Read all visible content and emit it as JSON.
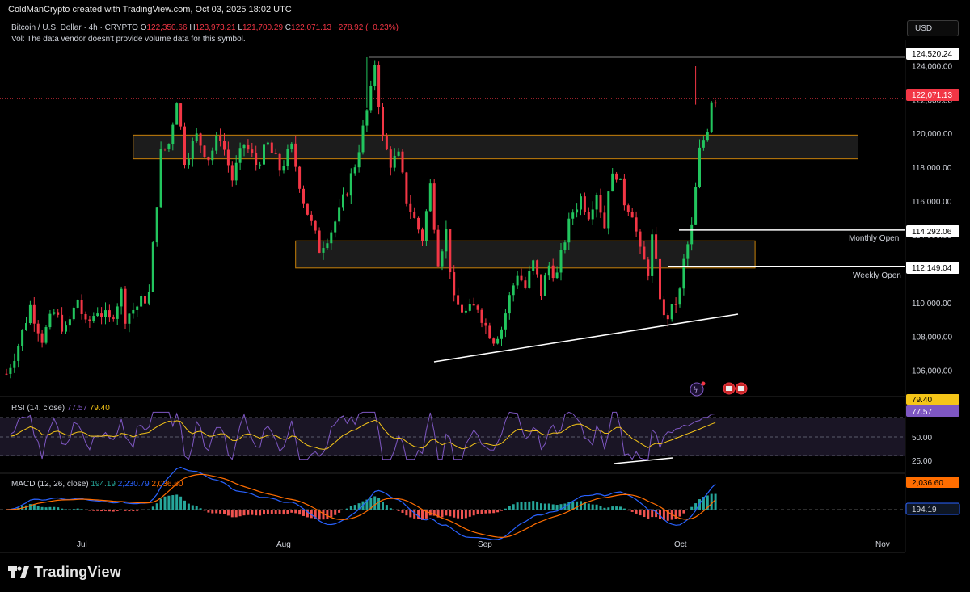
{
  "header": {
    "credit": "ColdManCrypto created with TradingView.com, Oct 03, 2025 18:02 UTC",
    "symbol": "Bitcoin / U.S. Dollar · 4h · CRYPTO",
    "o_label": "O",
    "o_value": "122,350.66",
    "h_label": "H",
    "h_value": "123,973.21",
    "l_label": "L",
    "l_value": "121,700.29",
    "c_label": "C",
    "c_value": "122,071.13",
    "change": "−278.92 (−0.23%)",
    "vol_note": "Vol: The data vendor doesn't provide volume data for this symbol.",
    "currency_button": "USD"
  },
  "brand": {
    "name": "TradingView"
  },
  "colors": {
    "up": "#089981",
    "up_bright": "#22c55e",
    "down": "#f23645",
    "zone_border": "#c9820a",
    "rsi": "#7e57c2",
    "rsi_ma": "#f5c518",
    "macd": "#2962ff",
    "signal": "#ff6d00"
  },
  "chart_data": [
    {
      "type": "candlestick",
      "title": "Bitcoin / U.S. Dollar · 4h · CRYPTO",
      "y_ticks": [
        "124,000.00",
        "122,000.00",
        "120,000.00",
        "118,000.00",
        "116,000.00",
        "114,000.00",
        "112,000.00",
        "110,000.00",
        "108,000.00",
        "106,000.00"
      ],
      "y_tick_values": [
        124000,
        122000,
        120000,
        118000,
        116000,
        114000,
        112000,
        110000,
        108000,
        106000
      ],
      "x_ticks": [
        "Jul",
        "Aug",
        "Sep",
        "Oct",
        "Nov"
      ],
      "ylim": [
        104500,
        125500
      ],
      "price_path": [
        [
          0,
          105800
        ],
        [
          3,
          107500
        ],
        [
          6,
          109800
        ],
        [
          9,
          107900
        ],
        [
          12,
          109400
        ],
        [
          15,
          108300
        ],
        [
          18,
          110200
        ],
        [
          20,
          108600
        ],
        [
          23,
          109600
        ],
        [
          26,
          108900
        ],
        [
          29,
          110600
        ],
        [
          30,
          109200
        ],
        [
          33,
          109800
        ],
        [
          36,
          110500
        ],
        [
          39,
          118800
        ],
        [
          41,
          119400
        ],
        [
          43,
          122100
        ],
        [
          45,
          118500
        ],
        [
          48,
          119800
        ],
        [
          51,
          118600
        ],
        [
          54,
          119900
        ],
        [
          57,
          117300
        ],
        [
          60,
          119400
        ],
        [
          63,
          118200
        ],
        [
          66,
          119300
        ],
        [
          69,
          117900
        ],
        [
          72,
          119100
        ],
        [
          75,
          116100
        ],
        [
          77,
          114600
        ],
        [
          79,
          113200
        ],
        [
          82,
          114300
        ],
        [
          84,
          115300
        ],
        [
          86,
          116700
        ],
        [
          88,
          118200
        ],
        [
          90,
          120200
        ],
        [
          92,
          122400
        ],
        [
          93,
          124200
        ],
        [
          95,
          119600
        ],
        [
          97,
          118300
        ],
        [
          99,
          118600
        ],
        [
          101,
          116100
        ],
        [
          103,
          114900
        ],
        [
          105,
          113800
        ],
        [
          107,
          116900
        ],
        [
          109,
          112600
        ],
        [
          111,
          114200
        ],
        [
          113,
          110000
        ],
        [
          116,
          109400
        ],
        [
          119,
          109800
        ],
        [
          121,
          108600
        ],
        [
          123,
          107900
        ],
        [
          125,
          108500
        ],
        [
          127,
          110300
        ],
        [
          129,
          111800
        ],
        [
          131,
          110900
        ],
        [
          133,
          112300
        ],
        [
          135,
          110600
        ],
        [
          137,
          112200
        ],
        [
          139,
          111600
        ],
        [
          141,
          113800
        ],
        [
          143,
          115400
        ],
        [
          145,
          116200
        ],
        [
          147,
          115300
        ],
        [
          149,
          116600
        ],
        [
          151,
          114500
        ],
        [
          152,
          116900
        ],
        [
          154,
          117700
        ],
        [
          156,
          116000
        ],
        [
          158,
          115400
        ],
        [
          160,
          112900
        ],
        [
          162,
          111900
        ],
        [
          163,
          113800
        ],
        [
          165,
          110500
        ],
        [
          166,
          109000
        ],
        [
          168,
          109500
        ],
        [
          170,
          110600
        ],
        [
          171,
          112400
        ],
        [
          173,
          114400
        ],
        [
          175,
          118900
        ],
        [
          177,
          120400
        ],
        [
          178,
          122071
        ]
      ],
      "horizontal_levels": [
        {
          "label": "124,520.24",
          "value": 124520.24
        },
        {
          "label": "114,292.06",
          "value": 114292.06,
          "caption": "Monthly Open"
        },
        {
          "label": "112,149.04",
          "value": 112149.04,
          "caption": "Weekly Open"
        }
      ],
      "last_price": {
        "label": "122,071.13",
        "value": 122071.13
      },
      "zones": [
        {
          "from": 118500,
          "to": 119900,
          "x_start": 32,
          "x_end": 215
        },
        {
          "from": 112050,
          "to": 113650,
          "x_start": 73,
          "x_end": 189
        }
      ],
      "trendline": {
        "from": [
          112,
          107150
        ],
        "to": [
          190,
          109400
        ]
      }
    },
    {
      "type": "line",
      "title": "RSI (14, close)",
      "values_text": [
        "77.57",
        "79.40"
      ],
      "levels": [
        "25.00",
        "50.00"
      ],
      "tags": [
        {
          "label": "79.40",
          "color": "#f5c518"
        },
        {
          "label": "77.57",
          "color": "#7e57c2"
        }
      ]
    },
    {
      "type": "line",
      "title": "MACD (12, 26, close)",
      "values_text": [
        "194.19",
        "2,230.79",
        "2,036.60"
      ],
      "tags": [
        {
          "label": "2,036.60",
          "color": "#ff6d00"
        },
        {
          "label": "194.19",
          "color": "#2962ff"
        }
      ]
    }
  ]
}
